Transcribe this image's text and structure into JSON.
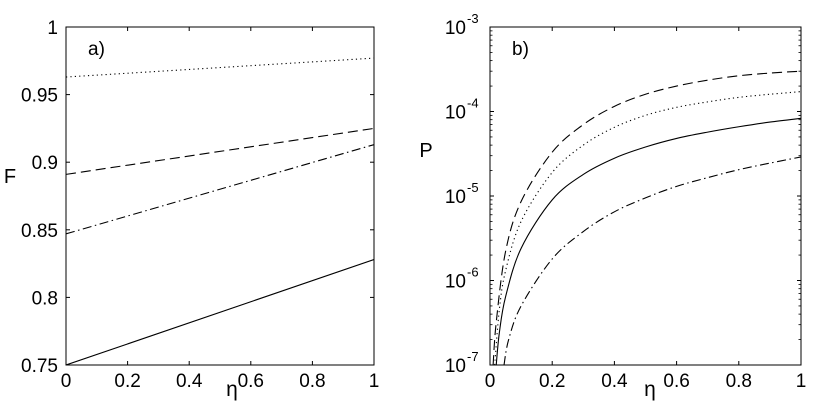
{
  "chart_data": [
    {
      "type": "line",
      "panel_label": "a)",
      "xlabel": "η",
      "ylabel": "F",
      "xlim": [
        0,
        1
      ],
      "ylim": [
        0.75,
        1
      ],
      "x_ticks": [
        0,
        0.2,
        0.4,
        0.6,
        0.8,
        1
      ],
      "x_tick_labels": [
        "0",
        "0.2",
        "0.4",
        "0.6",
        "0.8",
        "1"
      ],
      "y_ticks": [
        0.75,
        0.8,
        0.85,
        0.9,
        0.95,
        1
      ],
      "y_tick_labels": [
        "0.75",
        "0.8",
        "0.85",
        "0.9",
        "0.95",
        "1"
      ],
      "grid": false,
      "series": [
        {
          "style": "dotted",
          "x": [
            0,
            1
          ],
          "y": [
            0.963,
            0.977
          ]
        },
        {
          "style": "dashed",
          "x": [
            0,
            1
          ],
          "y": [
            0.891,
            0.925
          ]
        },
        {
          "style": "dashdot",
          "x": [
            0,
            1
          ],
          "y": [
            0.847,
            0.913
          ]
        },
        {
          "style": "solid",
          "x": [
            0,
            1
          ],
          "y": [
            0.75,
            0.828
          ]
        }
      ]
    },
    {
      "type": "line",
      "panel_label": "b)",
      "xlabel": "η",
      "ylabel": "P",
      "yscale": "log",
      "xlim": [
        0,
        1
      ],
      "ylim": [
        1e-07,
        0.001
      ],
      "x_ticks": [
        0,
        0.2,
        0.4,
        0.6,
        0.8,
        1
      ],
      "x_tick_labels": [
        "0",
        "0.2",
        "0.4",
        "0.6",
        "0.8",
        "1"
      ],
      "y_ticks": [
        1e-07,
        1e-06,
        1e-05,
        0.0001,
        0.001
      ],
      "y_tick_labels": [
        {
          "base": "10",
          "exp": "-7"
        },
        {
          "base": "10",
          "exp": "-6"
        },
        {
          "base": "10",
          "exp": "-5"
        },
        {
          "base": "10",
          "exp": "-4"
        },
        {
          "base": "10",
          "exp": "-3"
        }
      ],
      "grid": false,
      "series": [
        {
          "style": "dashed",
          "x": [
            0.01,
            0.02,
            0.05,
            0.1,
            0.2,
            0.3,
            0.4,
            0.5,
            0.6,
            0.7,
            0.8,
            0.9,
            1.0
          ],
          "y": [
            1e-07,
            3.2e-07,
            2.2e-06,
            8.6e-06,
            3.3e-05,
            7e-05,
            0.000115,
            0.00016,
            0.0002,
            0.000235,
            0.000265,
            0.000285,
            0.0003
          ]
        },
        {
          "style": "dotted",
          "x": [
            0.015,
            0.03,
            0.05,
            0.1,
            0.2,
            0.3,
            0.4,
            0.5,
            0.6,
            0.7,
            0.8,
            0.9,
            1.0
          ],
          "y": [
            1e-07,
            4.5e-07,
            1.3e-06,
            5e-06,
            1.9e-05,
            4e-05,
            6.5e-05,
            9e-05,
            0.000112,
            0.00013,
            0.000147,
            0.00016,
            0.000172
          ]
        },
        {
          "style": "solid",
          "x": [
            0.02,
            0.03,
            0.05,
            0.1,
            0.2,
            0.3,
            0.4,
            0.5,
            0.6,
            0.7,
            0.8,
            0.9,
            1.0
          ],
          "y": [
            1e-07,
            2.4e-07,
            6.4e-07,
            2.4e-06,
            9e-06,
            1.8e-05,
            2.8e-05,
            3.8e-05,
            4.8e-05,
            5.7e-05,
            6.6e-05,
            7.5e-05,
            8.3e-05
          ]
        },
        {
          "style": "dashdot",
          "x": [
            0.045,
            0.06,
            0.1,
            0.2,
            0.3,
            0.4,
            0.5,
            0.6,
            0.7,
            0.8,
            0.9,
            1.0
          ],
          "y": [
            1e-07,
            2e-07,
            5e-07,
            1.8e-06,
            3.8e-06,
            6.5e-06,
            9.5e-06,
            1.3e-05,
            1.65e-05,
            2.05e-05,
            2.45e-05,
            2.9e-05
          ]
        }
      ]
    }
  ]
}
